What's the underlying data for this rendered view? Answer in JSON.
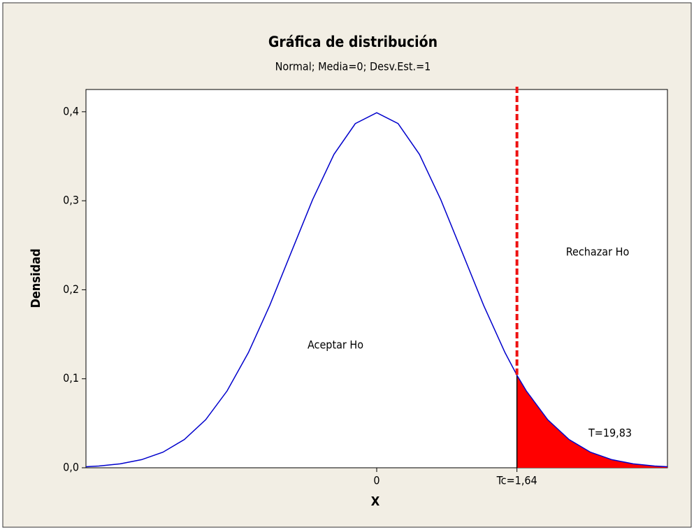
{
  "chart_data": {
    "type": "area-line",
    "title": "Gráfica de distribución",
    "subtitle": "Normal; Media=0; Desv.Est.=1",
    "xlabel": "X",
    "ylabel": "Densidad",
    "x": [
      -3.4,
      -3.25,
      -3,
      -2.75,
      -2.5,
      -2.25,
      -2,
      -1.75,
      -1.5,
      -1.25,
      -1,
      -0.75,
      -0.5,
      -0.25,
      0,
      0.25,
      0.5,
      0.75,
      1,
      1.25,
      1.5,
      1.64,
      1.75,
      2,
      2.25,
      2.5,
      2.75,
      3,
      3.25,
      3.4
    ],
    "series": [
      {
        "name": "Normal",
        "color": "#0000cc",
        "values": [
          0.0012,
          0.002,
          0.0044,
          0.0091,
          0.0175,
          0.0317,
          0.054,
          0.0863,
          0.1295,
          0.1826,
          0.242,
          0.3011,
          0.3521,
          0.3867,
          0.3989,
          0.3867,
          0.3521,
          0.3011,
          0.242,
          0.1826,
          0.1295,
          0.104,
          0.0863,
          0.054,
          0.0317,
          0.0175,
          0.0091,
          0.0044,
          0.002,
          0.0012
        ]
      }
    ],
    "critical_value": 1.64,
    "critical_color": "#ee1111",
    "shade_color": "#ff0000",
    "xlim": [
      -3.4,
      3.4
    ],
    "ylim": [
      0,
      0.425
    ],
    "xticks": [
      0,
      {
        "value": 1.64,
        "label": "Tc=1,64"
      }
    ],
    "yticks": [
      {
        "value": 0,
        "label": "0,0"
      },
      {
        "value": 0.1,
        "label": "0,1"
      },
      {
        "value": 0.2,
        "label": "0,2"
      },
      {
        "value": 0.3,
        "label": "0,3"
      },
      {
        "value": 0.4,
        "label": "0,4"
      }
    ],
    "annotations": [
      "Aceptar Ho",
      "Rechazar Ho",
      "T=19,83"
    ]
  }
}
